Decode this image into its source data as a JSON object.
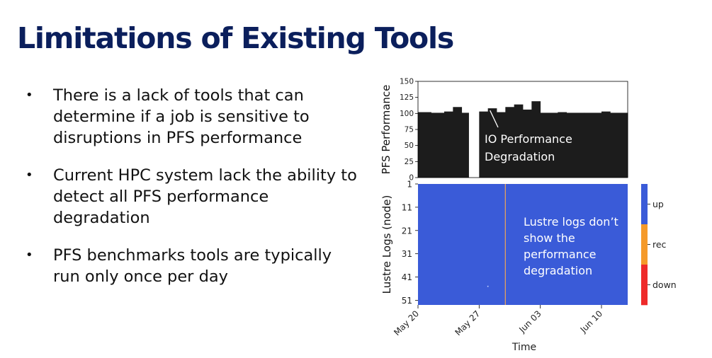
{
  "slide": {
    "title": "Limitations of Existing Tools",
    "bullets": [
      "There is a lack of tools that can determine if a job is sensitive to disruptions in PFS performance",
      "Current HPC system lack the ability to detect all PFS performance degradation",
      "PFS benchmarks tools are typically run only once per day"
    ]
  },
  "colors": {
    "title": "#0b1f5c",
    "bar": "#1c1c1c",
    "heatmap_up": "#3a5bd8",
    "rec": "#f59a2a",
    "down": "#ee2a2a",
    "event_line": "#e0a060"
  },
  "chart_data": [
    {
      "type": "bar",
      "ylabel": "PFS Performance",
      "ylim": [
        0,
        150
      ],
      "yticks": [
        "0",
        "25",
        "50",
        "75",
        "100",
        "125",
        "150"
      ],
      "x_range": [
        "May 20",
        "Jun 13"
      ],
      "bars": [
        {
          "x_start": "May 20",
          "x_end": "May 21.5",
          "value": 102
        },
        {
          "x_start": "May 21.5",
          "x_end": "May 23",
          "value": 101
        },
        {
          "x_start": "May 23",
          "x_end": "May 24",
          "value": 103
        },
        {
          "x_start": "May 24",
          "x_end": "May 25",
          "value": 110
        },
        {
          "x_start": "May 25",
          "x_end": "May 25.8",
          "value": 101
        },
        {
          "x_start": "May 27",
          "x_end": "May 28",
          "value": 103
        },
        {
          "x_start": "May 28",
          "x_end": "May 29",
          "value": 108
        },
        {
          "x_start": "May 29",
          "x_end": "May 30",
          "value": 102
        },
        {
          "x_start": "May 30",
          "x_end": "May 31",
          "value": 110
        },
        {
          "x_start": "May 31",
          "x_end": "Jun 01",
          "value": 114
        },
        {
          "x_start": "Jun 01",
          "x_end": "Jun 02",
          "value": 106
        },
        {
          "x_start": "Jun 02",
          "x_end": "Jun 03",
          "value": 119
        },
        {
          "x_start": "Jun 03",
          "x_end": "Jun 05",
          "value": 101
        },
        {
          "x_start": "Jun 05",
          "x_end": "Jun 06",
          "value": 102
        },
        {
          "x_start": "Jun 06",
          "x_end": "Jun 08",
          "value": 101
        },
        {
          "x_start": "Jun 08",
          "x_end": "Jun 10",
          "value": 101
        },
        {
          "x_start": "Jun 10",
          "x_end": "Jun 11",
          "value": 103
        },
        {
          "x_start": "Jun 11",
          "x_end": "Jun 13",
          "value": 101
        }
      ],
      "annotation": {
        "text_lines": [
          "IO Performance",
          "Degradation"
        ],
        "target_x": "May 28",
        "target_y": 108
      }
    },
    {
      "type": "heatmap",
      "ylabel": "Lustre Logs (node)",
      "xlabel": "Time",
      "yticks": [
        "1",
        "11",
        "21",
        "31",
        "41",
        "51"
      ],
      "y_range": [
        1,
        53
      ],
      "xticks": [
        "May 20",
        "May 27",
        "Jun 03",
        "Jun 10"
      ],
      "x_range": [
        "May 20",
        "Jun 13"
      ],
      "fill_state": "up",
      "events": [
        {
          "x": "May 30",
          "state": "rec",
          "nodes": "all"
        },
        {
          "x": "May 28",
          "node": 45,
          "state": "rec"
        }
      ],
      "annotation": {
        "text_lines": [
          "Lustre logs don’t",
          "show the",
          "performance",
          "degradation"
        ]
      },
      "colorbar": {
        "labels": [
          "up",
          "rec",
          "down"
        ]
      }
    }
  ]
}
